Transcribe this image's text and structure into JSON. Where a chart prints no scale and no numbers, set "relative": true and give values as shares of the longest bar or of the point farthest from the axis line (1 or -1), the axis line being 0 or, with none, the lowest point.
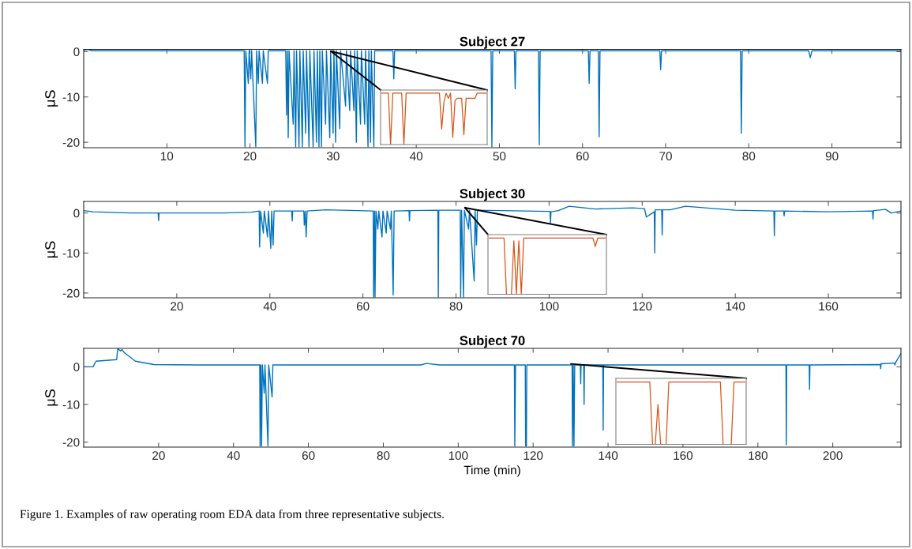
{
  "chart_data": [
    {
      "type": "line",
      "title": "Subject 27",
      "ylabel": "μS",
      "xlim": [
        0,
        98.3
      ],
      "xticks": [
        10,
        20,
        30,
        40,
        50,
        60,
        70,
        80,
        90
      ],
      "ylim": [
        -21.2,
        0.5
      ],
      "yticks": [
        -20,
        -10,
        0
      ],
      "x": [
        0,
        0.5,
        1,
        2,
        19.3,
        19.4,
        19.5,
        19.8,
        19.9,
        20.1,
        20.2,
        20.7,
        20.8,
        21.0,
        21.1,
        21.5,
        21.6,
        22.1,
        22.2,
        24.3,
        24.4,
        24.5,
        24.6,
        24.7,
        25.2,
        25.3,
        25.5,
        25.6,
        25.9,
        26.0,
        26.3,
        26.4,
        26.7,
        26.8,
        27.1,
        27.2,
        27.6,
        27.7,
        28.0,
        28.1,
        28.3,
        28.4,
        28.6,
        28.7,
        29.1,
        29.2,
        29.6,
        29.7,
        30.0,
        30.1,
        30.3,
        30.4,
        30.8,
        30.9,
        31.5,
        31.6,
        32.0,
        32.1,
        32.5,
        32.6,
        32.8,
        32.9,
        33.3,
        33.4,
        33.8,
        33.9,
        34.2,
        34.3,
        34.5,
        34.6,
        34.9,
        35.0,
        37.2,
        37.3,
        37.4,
        49.0,
        49.1,
        49.2,
        51.8,
        51.9,
        52.0,
        54.7,
        54.8,
        54.9,
        60.7,
        60.8,
        60.9,
        61.9,
        62.0,
        62.1,
        69.3,
        69.4,
        69.5,
        79.0,
        79.1,
        79.2,
        87.2,
        87.4,
        87.6,
        98.3
      ],
      "series": [
        {
          "color": "#0072bd",
          "values": [
            0.3,
            0.5,
            0.2,
            0.2,
            0.2,
            -21,
            0.2,
            -7,
            0.2,
            -6,
            0.2,
            -21,
            0.2,
            -7,
            0.2,
            -7,
            0.2,
            -7,
            0.2,
            0.2,
            -14,
            0.2,
            -19,
            0.2,
            -16,
            0.2,
            -21,
            0.2,
            -21,
            0.2,
            -21,
            0.2,
            -18,
            0.2,
            -21,
            0.2,
            -21,
            0.2,
            -20,
            0.2,
            -21,
            0.2,
            -21,
            0.2,
            -16,
            0.2,
            -19,
            0.2,
            -18,
            0.2,
            -20,
            0.2,
            -17,
            0.2,
            -12,
            0.2,
            -13,
            0.2,
            -13,
            0.2,
            -20,
            0.2,
            -16,
            0.2,
            -16,
            0.2,
            -21,
            0.2,
            -20,
            0.2,
            -21,
            0.2,
            0.2,
            -6,
            0.2,
            0.2,
            -21,
            0.2,
            0.2,
            -8.2,
            0.2,
            0.2,
            -20.6,
            0.2,
            0.2,
            -7,
            0.2,
            0.2,
            -18.8,
            0.2,
            0.2,
            -4,
            0.2,
            0.2,
            -18,
            0.2,
            0.2,
            -1.3,
            0.2,
            0.2
          ]
        }
      ]
    },
    {
      "type": "line",
      "title": "Subject 30",
      "ylabel": "μS",
      "xlim": [
        0,
        175.6
      ],
      "xticks": [
        20,
        40,
        60,
        80,
        100,
        120,
        140,
        160
      ],
      "ylim": [
        -21.2,
        2.9
      ],
      "yticks": [
        -20,
        -10,
        0
      ],
      "x": [
        0,
        2,
        10,
        16.0,
        16.1,
        16.2,
        30,
        36,
        37.7,
        37.8,
        38.0,
        38.6,
        38.8,
        39.5,
        39.7,
        40.2,
        40.4,
        40.7,
        40.9,
        44.7,
        44.8,
        44.9,
        47.3,
        47.4,
        47.6,
        47.8,
        48.0,
        52,
        62.2,
        62.3,
        62.5,
        62.6,
        62.8,
        63.2,
        63.4,
        64.1,
        64.3,
        65.0,
        65.2,
        65.9,
        66.1,
        66.5,
        66.7,
        69.9,
        70.0,
        70.1,
        76.1,
        76.2,
        76.3,
        80.9,
        81.0,
        81.2,
        81.6,
        81.8,
        82.7,
        82.9,
        83.9,
        84.1,
        84.4,
        84.6,
        95,
        100.2,
        100.3,
        100.4,
        102,
        104.3,
        110,
        118,
        120.5,
        120.9,
        122.6,
        122.7,
        122.8,
        124.2,
        124.3,
        124.4,
        126,
        129.3,
        140,
        148.3,
        148.4,
        148.5,
        150.4,
        150.5,
        150.6,
        160,
        169.5,
        169.6,
        169.7,
        172.3,
        173.5,
        175.6
      ],
      "series": [
        {
          "color": "#0072bd",
          "values": [
            0.6,
            0.3,
            0,
            0,
            -1.9,
            0,
            0,
            0.2,
            0.5,
            -8.5,
            0.5,
            -5,
            0.5,
            -6,
            0.5,
            -8.8,
            0.5,
            -8,
            0.5,
            0.5,
            -2,
            0.5,
            0.5,
            -3,
            0.5,
            -6,
            0.5,
            0.8,
            0.5,
            -21,
            0.5,
            -21,
            0.5,
            -4,
            0.5,
            -6,
            0.5,
            -5,
            0.5,
            -4,
            0.5,
            -20.5,
            0.5,
            0.6,
            -2,
            0.6,
            0.7,
            -21,
            0.7,
            0.7,
            -21,
            0.7,
            -21,
            0.7,
            -4,
            0.7,
            -17,
            0.7,
            -8,
            0.7,
            0.5,
            0.4,
            -2.5,
            0.3,
            0.6,
            1.7,
            1,
            1.3,
            1.1,
            -1,
            0.3,
            -10,
            0.8,
            0.8,
            -5.5,
            0.8,
            0.8,
            1.7,
            0.7,
            0.5,
            -5.7,
            0.5,
            0.5,
            -0.7,
            0.5,
            0.3,
            0.5,
            -1.5,
            0.6,
            0.9,
            0,
            0.5
          ]
        }
      ]
    },
    {
      "type": "line",
      "title": "Subject 70",
      "ylabel": "μS",
      "xlabel": "Time (min)",
      "xlim": [
        0,
        218.2
      ],
      "xticks": [
        20,
        40,
        60,
        80,
        100,
        120,
        140,
        160,
        180,
        200
      ],
      "ylim": [
        -21.3,
        4.9
      ],
      "yticks": [
        -20,
        -10,
        0
      ],
      "annotations": [
        "Figure 1. Examples of raw operating room EDA data from three representative subjects."
      ],
      "x": [
        0,
        2.5,
        3.3,
        8.8,
        9.1,
        9.8,
        10.2,
        10.8,
        13.8,
        18.7,
        30,
        47.0,
        47.1,
        47.3,
        47.5,
        47.7,
        48.2,
        48.4,
        49.2,
        49.4,
        50.3,
        50.5,
        90,
        91.5,
        95,
        115.0,
        115.1,
        115.3,
        117.9,
        118.0,
        118.2,
        118.3,
        130.4,
        130.5,
        130.7,
        130.9,
        131.1,
        132.6,
        132.7,
        132.8,
        133.5,
        133.6,
        133.7,
        138.6,
        138.7,
        138.8,
        187.5,
        187.6,
        187.7,
        193.7,
        193.8,
        193.9,
        212.7,
        212.8,
        212.9,
        216.5,
        216.6,
        216.8,
        218.2
      ],
      "series": [
        {
          "color": "#0072bd",
          "values": [
            0,
            0,
            1.5,
            1.9,
            4.9,
            4.2,
            4.6,
            3.8,
            1.5,
            0.6,
            0.5,
            0.5,
            -21,
            0.5,
            -21,
            0.5,
            -7,
            0.5,
            -21,
            0.5,
            -8,
            0.5,
            0.5,
            0.9,
            0.5,
            0.5,
            -21,
            0.5,
            0.5,
            -21,
            -21,
            0.5,
            0.5,
            -21,
            0.5,
            -21,
            0.5,
            0.5,
            -4.5,
            0.5,
            0.5,
            -10,
            0.5,
            0.5,
            -16.8,
            0.5,
            0.5,
            -20.7,
            0.5,
            0.5,
            -6,
            0.5,
            0.6,
            -0.5,
            0.8,
            1.0,
            0.5,
            1.2,
            3.5
          ]
        }
      ]
    },
    {
      "type": "line",
      "relative": true,
      "categories": [
        null,
        null,
        null,
        null,
        null,
        null,
        null,
        null,
        null,
        null,
        null,
        null,
        null,
        null,
        null,
        null,
        null,
        null,
        null,
        null,
        null,
        null,
        null,
        null,
        null,
        null,
        null,
        null,
        null,
        null,
        null,
        null,
        null,
        null,
        null,
        null,
        null,
        null,
        null,
        null,
        null,
        null,
        null,
        null,
        null,
        null,
        null,
        null
      ],
      "series": [
        {
          "color": "#d95319",
          "values": [
            1,
            1,
            1,
            1,
            0,
            1,
            1,
            1,
            1,
            1,
            0,
            1,
            1,
            1,
            1,
            1,
            1,
            1,
            1,
            1,
            1,
            1,
            1,
            1,
            1,
            1,
            1,
            0.3,
            0.82,
            1,
            0.9,
            1,
            0.14,
            0.85,
            0.9,
            0.9,
            0.9,
            0.19,
            0.9,
            0.9,
            0.9,
            0.9,
            0.9,
            1,
            1,
            1,
            1,
            1
          ]
        }
      ]
    },
    {
      "type": "line",
      "relative": true,
      "categories": [
        null,
        null,
        null,
        null,
        null,
        null,
        null,
        null,
        null,
        null,
        null,
        null,
        null,
        null,
        null,
        null,
        null,
        null,
        null,
        null,
        null,
        null,
        null,
        null,
        null,
        null,
        null,
        null,
        null,
        null,
        null,
        null,
        null,
        null,
        null,
        null,
        null,
        null,
        null,
        null,
        null,
        null,
        null,
        null,
        null,
        null,
        null,
        null
      ],
      "series": [
        {
          "color": "#d95319",
          "values": [
            1,
            1,
            1,
            1,
            1,
            1,
            1,
            0,
            0,
            0,
            0.95,
            0,
            0.95,
            0,
            1,
            1,
            1,
            1,
            1,
            1,
            1,
            1,
            1,
            1,
            1,
            1,
            1,
            1,
            1,
            1,
            1,
            1,
            1,
            1,
            1,
            1,
            1,
            1,
            1,
            1,
            1,
            1,
            1,
            0.85,
            1,
            1,
            1,
            1
          ]
        }
      ]
    },
    {
      "type": "line",
      "relative": true,
      "categories": [
        null,
        null,
        null,
        null,
        null,
        null,
        null,
        null,
        null,
        null,
        null,
        null,
        null,
        null,
        null,
        null,
        null,
        null,
        null,
        null,
        null,
        null,
        null,
        null,
        null,
        null,
        null,
        null,
        null,
        null,
        null,
        null,
        null,
        null,
        null,
        null,
        null,
        null,
        null,
        null,
        null,
        null,
        null,
        null,
        null,
        null,
        null,
        null
      ],
      "series": [
        {
          "color": "#d95319",
          "values": [
            1,
            1,
            1,
            1,
            1,
            1,
            1,
            1,
            1,
            1,
            1,
            1,
            1,
            0,
            0,
            0.64,
            0,
            0,
            0,
            1,
            1,
            1,
            1,
            1,
            1,
            1,
            1,
            1,
            1,
            1,
            1,
            1,
            1,
            1,
            1,
            1,
            1,
            1,
            1,
            0,
            0,
            0,
            0,
            1,
            1,
            1,
            1,
            1
          ]
        }
      ]
    }
  ]
}
